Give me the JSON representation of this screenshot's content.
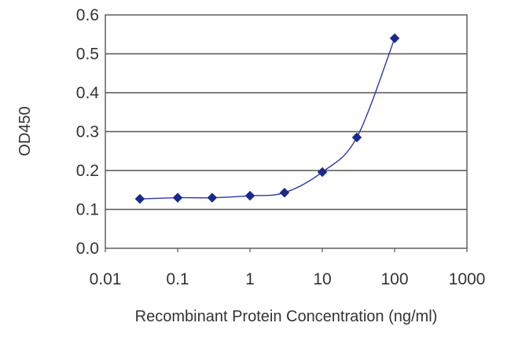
{
  "chart_data": {
    "type": "scatter",
    "title": "",
    "xlabel": "Recombinant Protein Concentration (ng/ml)",
    "ylabel": "OD450",
    "x_scale": "log",
    "xlim": [
      0.01,
      1000
    ],
    "ylim": [
      0,
      0.6
    ],
    "x_ticks": [
      "0.01",
      "0.1",
      "1",
      "10",
      "100",
      "1000"
    ],
    "y_ticks": [
      "0.0",
      "0.1",
      "0.2",
      "0.3",
      "0.4",
      "0.5",
      "0.6"
    ],
    "grid": "horizontal",
    "legend": "none",
    "series": [
      {
        "x": [
          0.03,
          0.1,
          0.3,
          1,
          3,
          10,
          30,
          100
        ],
        "y": [
          0.127,
          0.13,
          0.13,
          0.135,
          0.143,
          0.196,
          0.285,
          0.54
        ],
        "marker": "diamond",
        "line": "smooth",
        "color": "#1a2a8c"
      }
    ]
  }
}
